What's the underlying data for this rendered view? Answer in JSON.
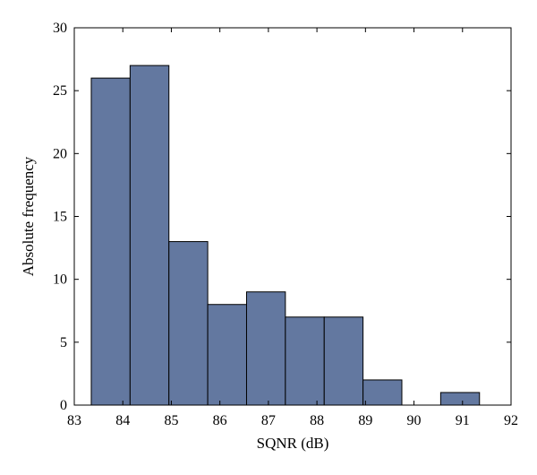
{
  "chart_data": {
    "type": "bar",
    "subtype": "histogram",
    "xlabel": "SQNR (dB)",
    "ylabel": "Absolute frequency",
    "xlim": [
      83,
      92
    ],
    "ylim": [
      0,
      30
    ],
    "xticks": [
      83,
      84,
      85,
      86,
      87,
      88,
      89,
      90,
      91,
      92
    ],
    "yticks": [
      0,
      5,
      10,
      15,
      20,
      25,
      30
    ],
    "bin_edges": [
      83.35,
      84.15,
      84.95,
      85.75,
      86.55,
      87.35,
      88.15,
      88.95,
      89.75,
      90.55,
      91.35
    ],
    "values": [
      26,
      27,
      13,
      8,
      9,
      7,
      7,
      2,
      0,
      1
    ],
    "bar_color": "#6378a0",
    "edge_color": "#000000",
    "grid": false,
    "box": true
  }
}
